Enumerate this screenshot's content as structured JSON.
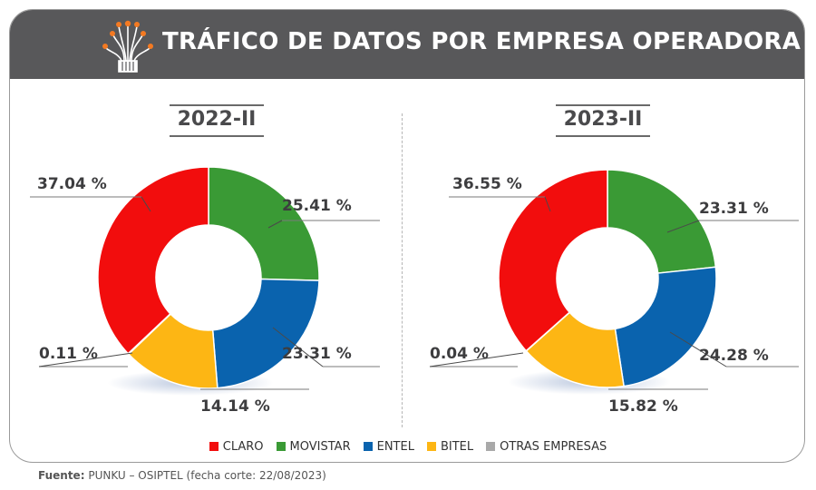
{
  "title": "TRÁFICO DE DATOS POR EMPRESA OPERADORA",
  "footer": {
    "label": "Fuente:",
    "text": "PUNKU – OSIPTEL (fecha corte: 22/08/2023)"
  },
  "colors": {
    "CLARO": "#f20d0d",
    "MOVISTAR": "#3a9a35",
    "ENTEL": "#0a63ae",
    "BITEL": "#fdb614",
    "OTRAS EMPRESAS": "#a9a9a9"
  },
  "chart_data": [
    {
      "type": "pie",
      "title": "2022-II",
      "categories": [
        "CLARO",
        "MOVISTAR",
        "ENTEL",
        "BITEL",
        "OTRAS EMPRESAS"
      ],
      "values": [
        37.04,
        25.41,
        23.31,
        14.14,
        0.11
      ],
      "value_labels": [
        "37.04 %",
        "25.41 %",
        "23.31 %",
        "14.14 %",
        "0.11 %"
      ],
      "legend": "bottom"
    },
    {
      "type": "pie",
      "title": "2023-II",
      "categories": [
        "CLARO",
        "MOVISTAR",
        "ENTEL",
        "BITEL",
        "OTRAS EMPRESAS"
      ],
      "values": [
        36.55,
        23.31,
        24.28,
        15.82,
        0.04
      ],
      "value_labels": [
        "36.55 %",
        "23.31 %",
        "24.28 %",
        "15.82 %",
        "0.04 %"
      ],
      "legend": "bottom"
    }
  ],
  "legend_items": [
    "CLARO",
    "MOVISTAR",
    "ENTEL",
    "BITEL",
    "OTRAS EMPRESAS"
  ]
}
